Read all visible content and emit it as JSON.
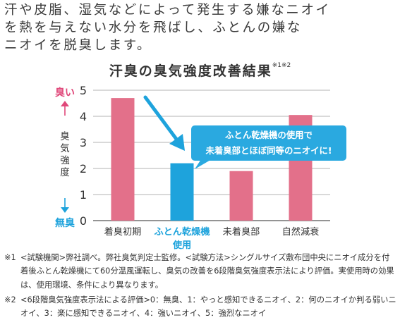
{
  "intro": {
    "line1": "汗や皮脂、湿気などによって発生する嫌なニオイ",
    "line2": "を熱を与えない水分を飛ばし、ふとんの嫌な",
    "line3": "ニオイを脱臭します。"
  },
  "chart_data": {
    "type": "bar",
    "title": "汗臭の臭気強度改善結果",
    "title_note": "※1※2",
    "categories": [
      "着臭初期",
      "ふとん乾燥機使用",
      "未着臭部",
      "自然減衰"
    ],
    "category_label_lines": [
      [
        "着臭初期"
      ],
      [
        "ふとん乾燥機",
        "使用"
      ],
      [
        "未着臭部"
      ],
      [
        "自然減衰"
      ]
    ],
    "values": [
      4.7,
      2.2,
      1.9,
      4.05
    ],
    "colors": [
      "#e3708a",
      "#1ea3dc",
      "#e3708a",
      "#e3708a"
    ],
    "highlight_color": "#1ea3dc",
    "ylabel": "臭気強度",
    "ylim": [
      0,
      5
    ],
    "yticks": [
      "0",
      "1",
      "2",
      "3",
      "4",
      "5"
    ],
    "ytop_label": "臭い",
    "ybottom_label": "無臭",
    "grid": true,
    "callout": {
      "line1": "ふとん乾燥機の使用で",
      "line2": "未着臭部とほぼ同等のニオイに!"
    }
  },
  "notes": [
    {
      "mark": "※1",
      "text": "<試験機関>弊社調べ。弊社臭気判定士監修。<試験方法>シングルサイズ敷布団中央にニオイ成分を付着後ふとん乾燥機にて60分温風運転し、臭気の改善を6段階臭気強度表示法により評価。実使用時の効果は、使用環境、条件により異なります。"
    },
    {
      "mark": "※2",
      "text": "<6段階臭気強度表示法による評価>0：無臭、1：やっと感知できるニオイ、2：何のニオイか判る弱いニオイ、3：楽に感知できるニオイ、4：強いニオイ、5：強烈なニオイ"
    }
  ]
}
